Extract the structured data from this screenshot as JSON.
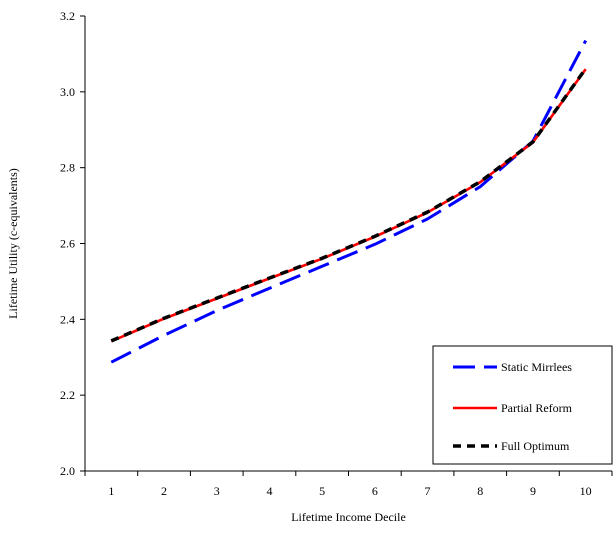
{
  "chart_data": {
    "type": "line",
    "title": "",
    "xlabel": "Lifetime Income Decile",
    "ylabel": "Lifetime Utility (c-equivalents)",
    "x": [
      1,
      2,
      3,
      4,
      5,
      6,
      7,
      8,
      9,
      10
    ],
    "x_ticks": [
      "1",
      "2",
      "3",
      "4",
      "5",
      "6",
      "7",
      "8",
      "9",
      "10"
    ],
    "ylim": [
      2.0,
      3.2
    ],
    "y_ticks": [
      "2.0",
      "2.2",
      "2.4",
      "2.6",
      "2.8",
      "3.0",
      "3.2"
    ],
    "grid": false,
    "legend_position": "bottom-right",
    "series": [
      {
        "name": "Static Mirrlees",
        "color": "#0000ff",
        "dash": "long-dash",
        "values": [
          2.287,
          2.358,
          2.423,
          2.482,
          2.54,
          2.598,
          2.665,
          2.75,
          2.87,
          3.135
        ]
      },
      {
        "name": "Partial Reform",
        "color": "#ff0000",
        "dash": "solid",
        "values": [
          2.342,
          2.402,
          2.455,
          2.508,
          2.56,
          2.618,
          2.682,
          2.762,
          2.867,
          3.06
        ]
      },
      {
        "name": "Full Optimum",
        "color": "#000000",
        "dash": "short-dash",
        "values": [
          2.343,
          2.403,
          2.456,
          2.509,
          2.561,
          2.619,
          2.683,
          2.763,
          2.868,
          3.061
        ]
      }
    ]
  }
}
